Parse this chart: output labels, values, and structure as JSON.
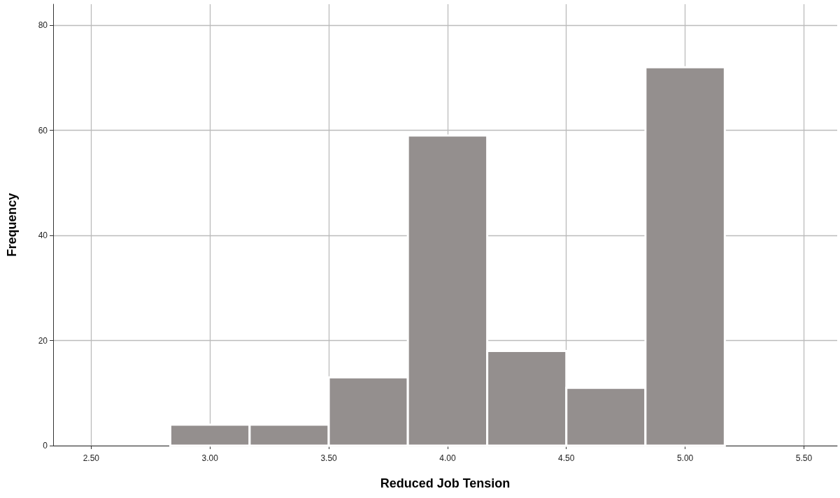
{
  "chart_data": {
    "type": "histogram",
    "xlabel": "Reduced Job Tension",
    "ylabel": "Frequency",
    "bins": [
      2.833,
      3.167,
      3.5,
      3.833,
      4.167,
      4.5,
      4.833,
      5.167
    ],
    "values": [
      4,
      4,
      13,
      59,
      18,
      11,
      72
    ],
    "color": "#948f8e",
    "xlim": [
      2.34,
      5.64
    ],
    "xticks": [
      {
        "value": 2.5,
        "label": "2.50"
      },
      {
        "value": 3,
        "label": "3.00"
      },
      {
        "value": 3.5,
        "label": "3.50"
      },
      {
        "value": 4,
        "label": "4.00"
      },
      {
        "value": 4.5,
        "label": "4.50"
      },
      {
        "value": 5,
        "label": "5.00"
      },
      {
        "value": 5.5,
        "label": "5.50"
      }
    ],
    "ylim": [
      0,
      84
    ],
    "yticks": [
      0,
      20,
      40,
      60,
      80
    ],
    "grid": true
  }
}
